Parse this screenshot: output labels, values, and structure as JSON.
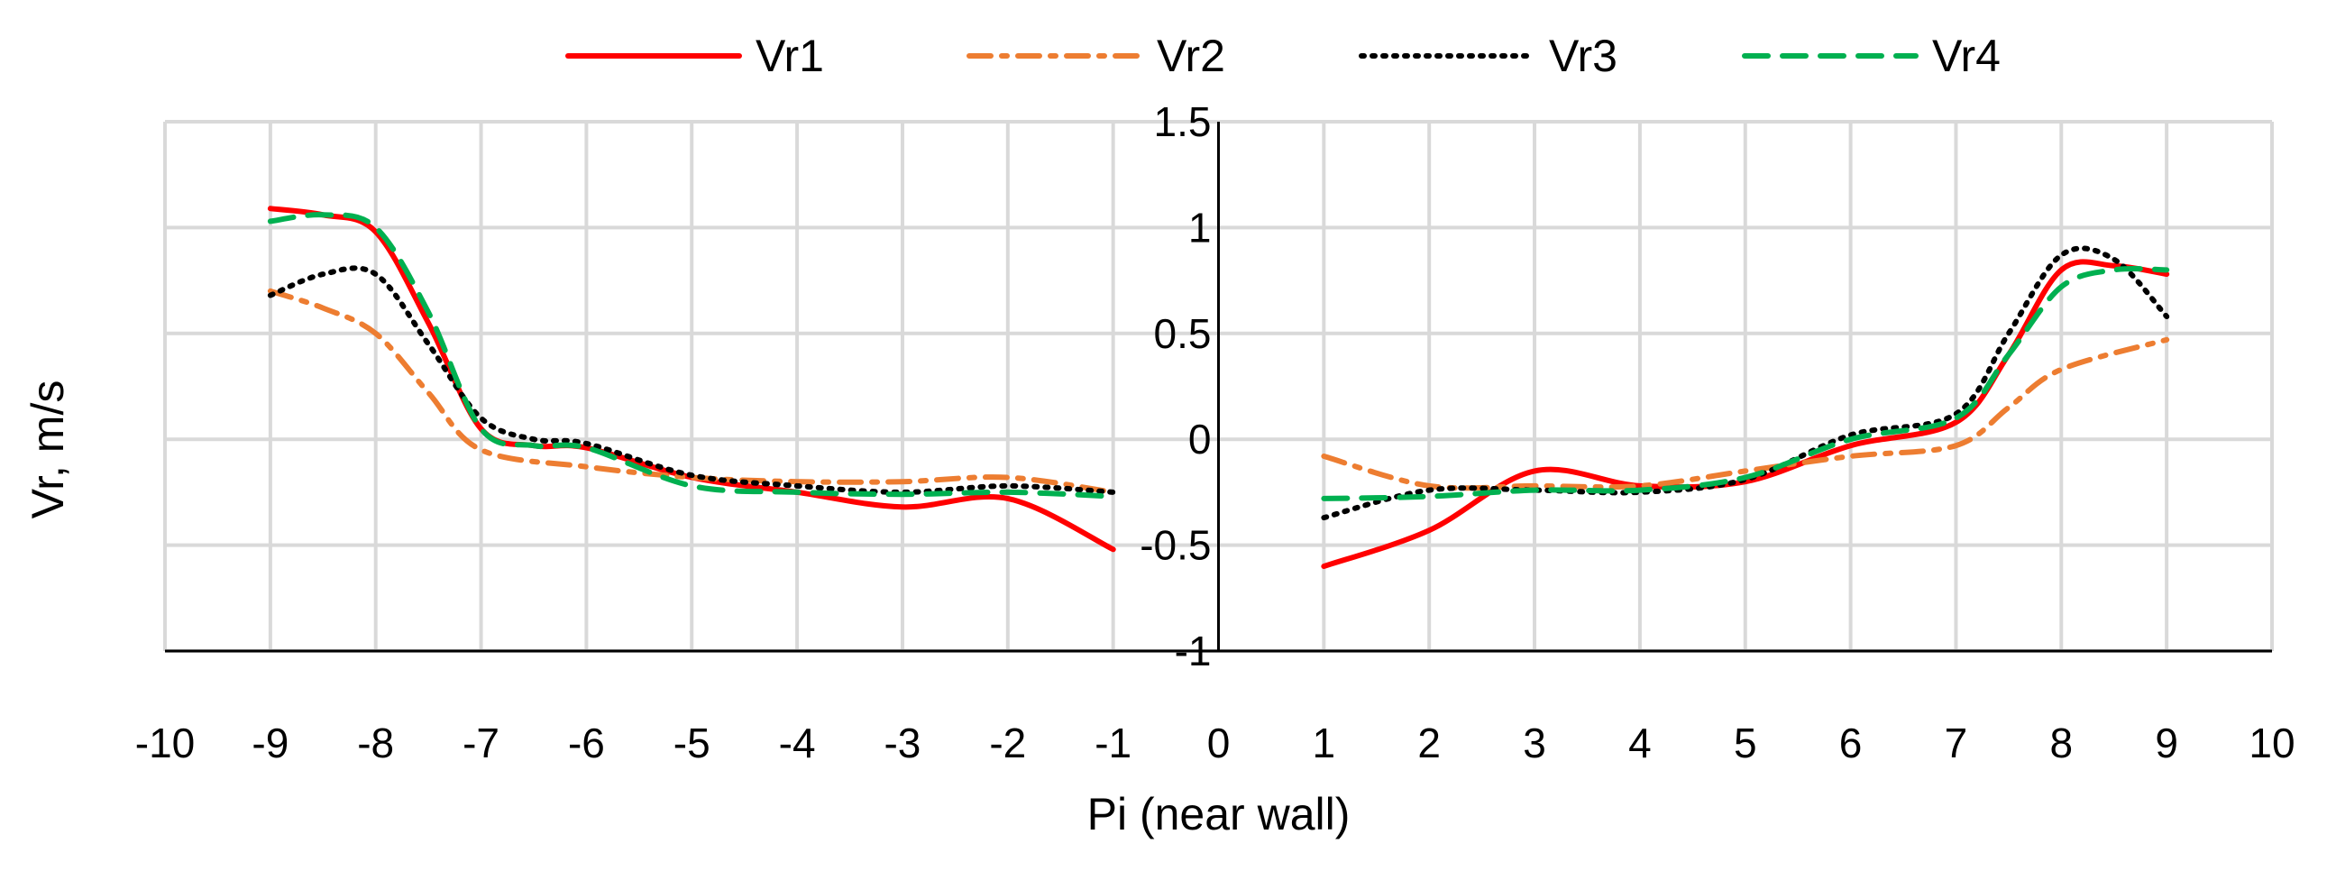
{
  "chart_data": {
    "type": "line",
    "title": "",
    "xlabel": "Pi (near wall)",
    "ylabel": "Vr, m/s",
    "xlim": [
      -10,
      10
    ],
    "ylim": [
      -1,
      1.5
    ],
    "x_ticks": [
      "-10",
      "-9",
      "-8",
      "-7",
      "-6",
      "-5",
      "-4",
      "-3",
      "-2",
      "-1",
      "0",
      "1",
      "2",
      "3",
      "4",
      "5",
      "6",
      "7",
      "8",
      "9",
      "10"
    ],
    "y_ticks": [
      "1.5",
      "1",
      "0.5",
      "0",
      "-0.5",
      "-1"
    ],
    "grid": true,
    "legend_position": "top",
    "series": [
      {
        "name": "Vr1",
        "color": "#ff0000",
        "style": "solid",
        "segments": [
          [
            [
              -9,
              1.09
            ],
            [
              -8.5,
              1.06
            ],
            [
              -8,
              0.98
            ],
            [
              -7.5,
              0.55
            ],
            [
              -7,
              0.05
            ],
            [
              -6.5,
              -0.03
            ],
            [
              -6,
              -0.04
            ],
            [
              -5,
              -0.18
            ],
            [
              -4,
              -0.25
            ],
            [
              -3,
              -0.32
            ],
            [
              -2,
              -0.28
            ],
            [
              -1,
              -0.52
            ]
          ],
          [
            [
              1,
              -0.6
            ],
            [
              2,
              -0.43
            ],
            [
              3,
              -0.15
            ],
            [
              4,
              -0.22
            ],
            [
              5,
              -0.2
            ],
            [
              6,
              -0.03
            ],
            [
              7,
              0.08
            ],
            [
              7.5,
              0.4
            ],
            [
              8,
              0.8
            ],
            [
              8.5,
              0.82
            ],
            [
              9,
              0.78
            ]
          ]
        ]
      },
      {
        "name": "Vr2",
        "color": "#ed7d31",
        "style": "dashdot",
        "segments": [
          [
            [
              -9,
              0.7
            ],
            [
              -8.5,
              0.62
            ],
            [
              -8,
              0.5
            ],
            [
              -7.5,
              0.22
            ],
            [
              -7,
              -0.05
            ],
            [
              -6,
              -0.13
            ],
            [
              -5,
              -0.18
            ],
            [
              -4,
              -0.2
            ],
            [
              -3,
              -0.2
            ],
            [
              -2,
              -0.18
            ],
            [
              -1,
              -0.25
            ]
          ],
          [
            [
              1,
              -0.08
            ],
            [
              2,
              -0.22
            ],
            [
              3,
              -0.22
            ],
            [
              4,
              -0.22
            ],
            [
              5,
              -0.15
            ],
            [
              6,
              -0.08
            ],
            [
              7,
              -0.03
            ],
            [
              7.5,
              0.15
            ],
            [
              8,
              0.33
            ],
            [
              9,
              0.47
            ]
          ]
        ]
      },
      {
        "name": "Vr3",
        "color": "#000000",
        "style": "dotted",
        "segments": [
          [
            [
              -9,
              0.68
            ],
            [
              -8.5,
              0.78
            ],
            [
              -8,
              0.78
            ],
            [
              -7.5,
              0.45
            ],
            [
              -7,
              0.1
            ],
            [
              -6.5,
              0.0
            ],
            [
              -6,
              -0.02
            ],
            [
              -5,
              -0.17
            ],
            [
              -4,
              -0.22
            ],
            [
              -3,
              -0.25
            ],
            [
              -2,
              -0.22
            ],
            [
              -1,
              -0.25
            ]
          ],
          [
            [
              1,
              -0.37
            ],
            [
              2,
              -0.24
            ],
            [
              3,
              -0.24
            ],
            [
              4,
              -0.25
            ],
            [
              5,
              -0.19
            ],
            [
              6,
              0.02
            ],
            [
              7,
              0.12
            ],
            [
              7.5,
              0.5
            ],
            [
              8,
              0.87
            ],
            [
              8.5,
              0.85
            ],
            [
              9,
              0.58
            ]
          ]
        ]
      },
      {
        "name": "Vr4",
        "color": "#00b050",
        "style": "dashed",
        "segments": [
          [
            [
              -9,
              1.03
            ],
            [
              -8.5,
              1.06
            ],
            [
              -8,
              1.0
            ],
            [
              -7.5,
              0.6
            ],
            [
              -7,
              0.05
            ],
            [
              -6.5,
              -0.03
            ],
            [
              -6,
              -0.04
            ],
            [
              -5,
              -0.22
            ],
            [
              -4,
              -0.25
            ],
            [
              -3,
              -0.26
            ],
            [
              -2,
              -0.25
            ],
            [
              -1,
              -0.27
            ]
          ],
          [
            [
              1,
              -0.28
            ],
            [
              2,
              -0.27
            ],
            [
              3,
              -0.24
            ],
            [
              4,
              -0.24
            ],
            [
              5,
              -0.18
            ],
            [
              6,
              0.0
            ],
            [
              7,
              0.1
            ],
            [
              7.5,
              0.4
            ],
            [
              8,
              0.72
            ],
            [
              8.5,
              0.8
            ],
            [
              9,
              0.8
            ]
          ]
        ]
      }
    ]
  }
}
